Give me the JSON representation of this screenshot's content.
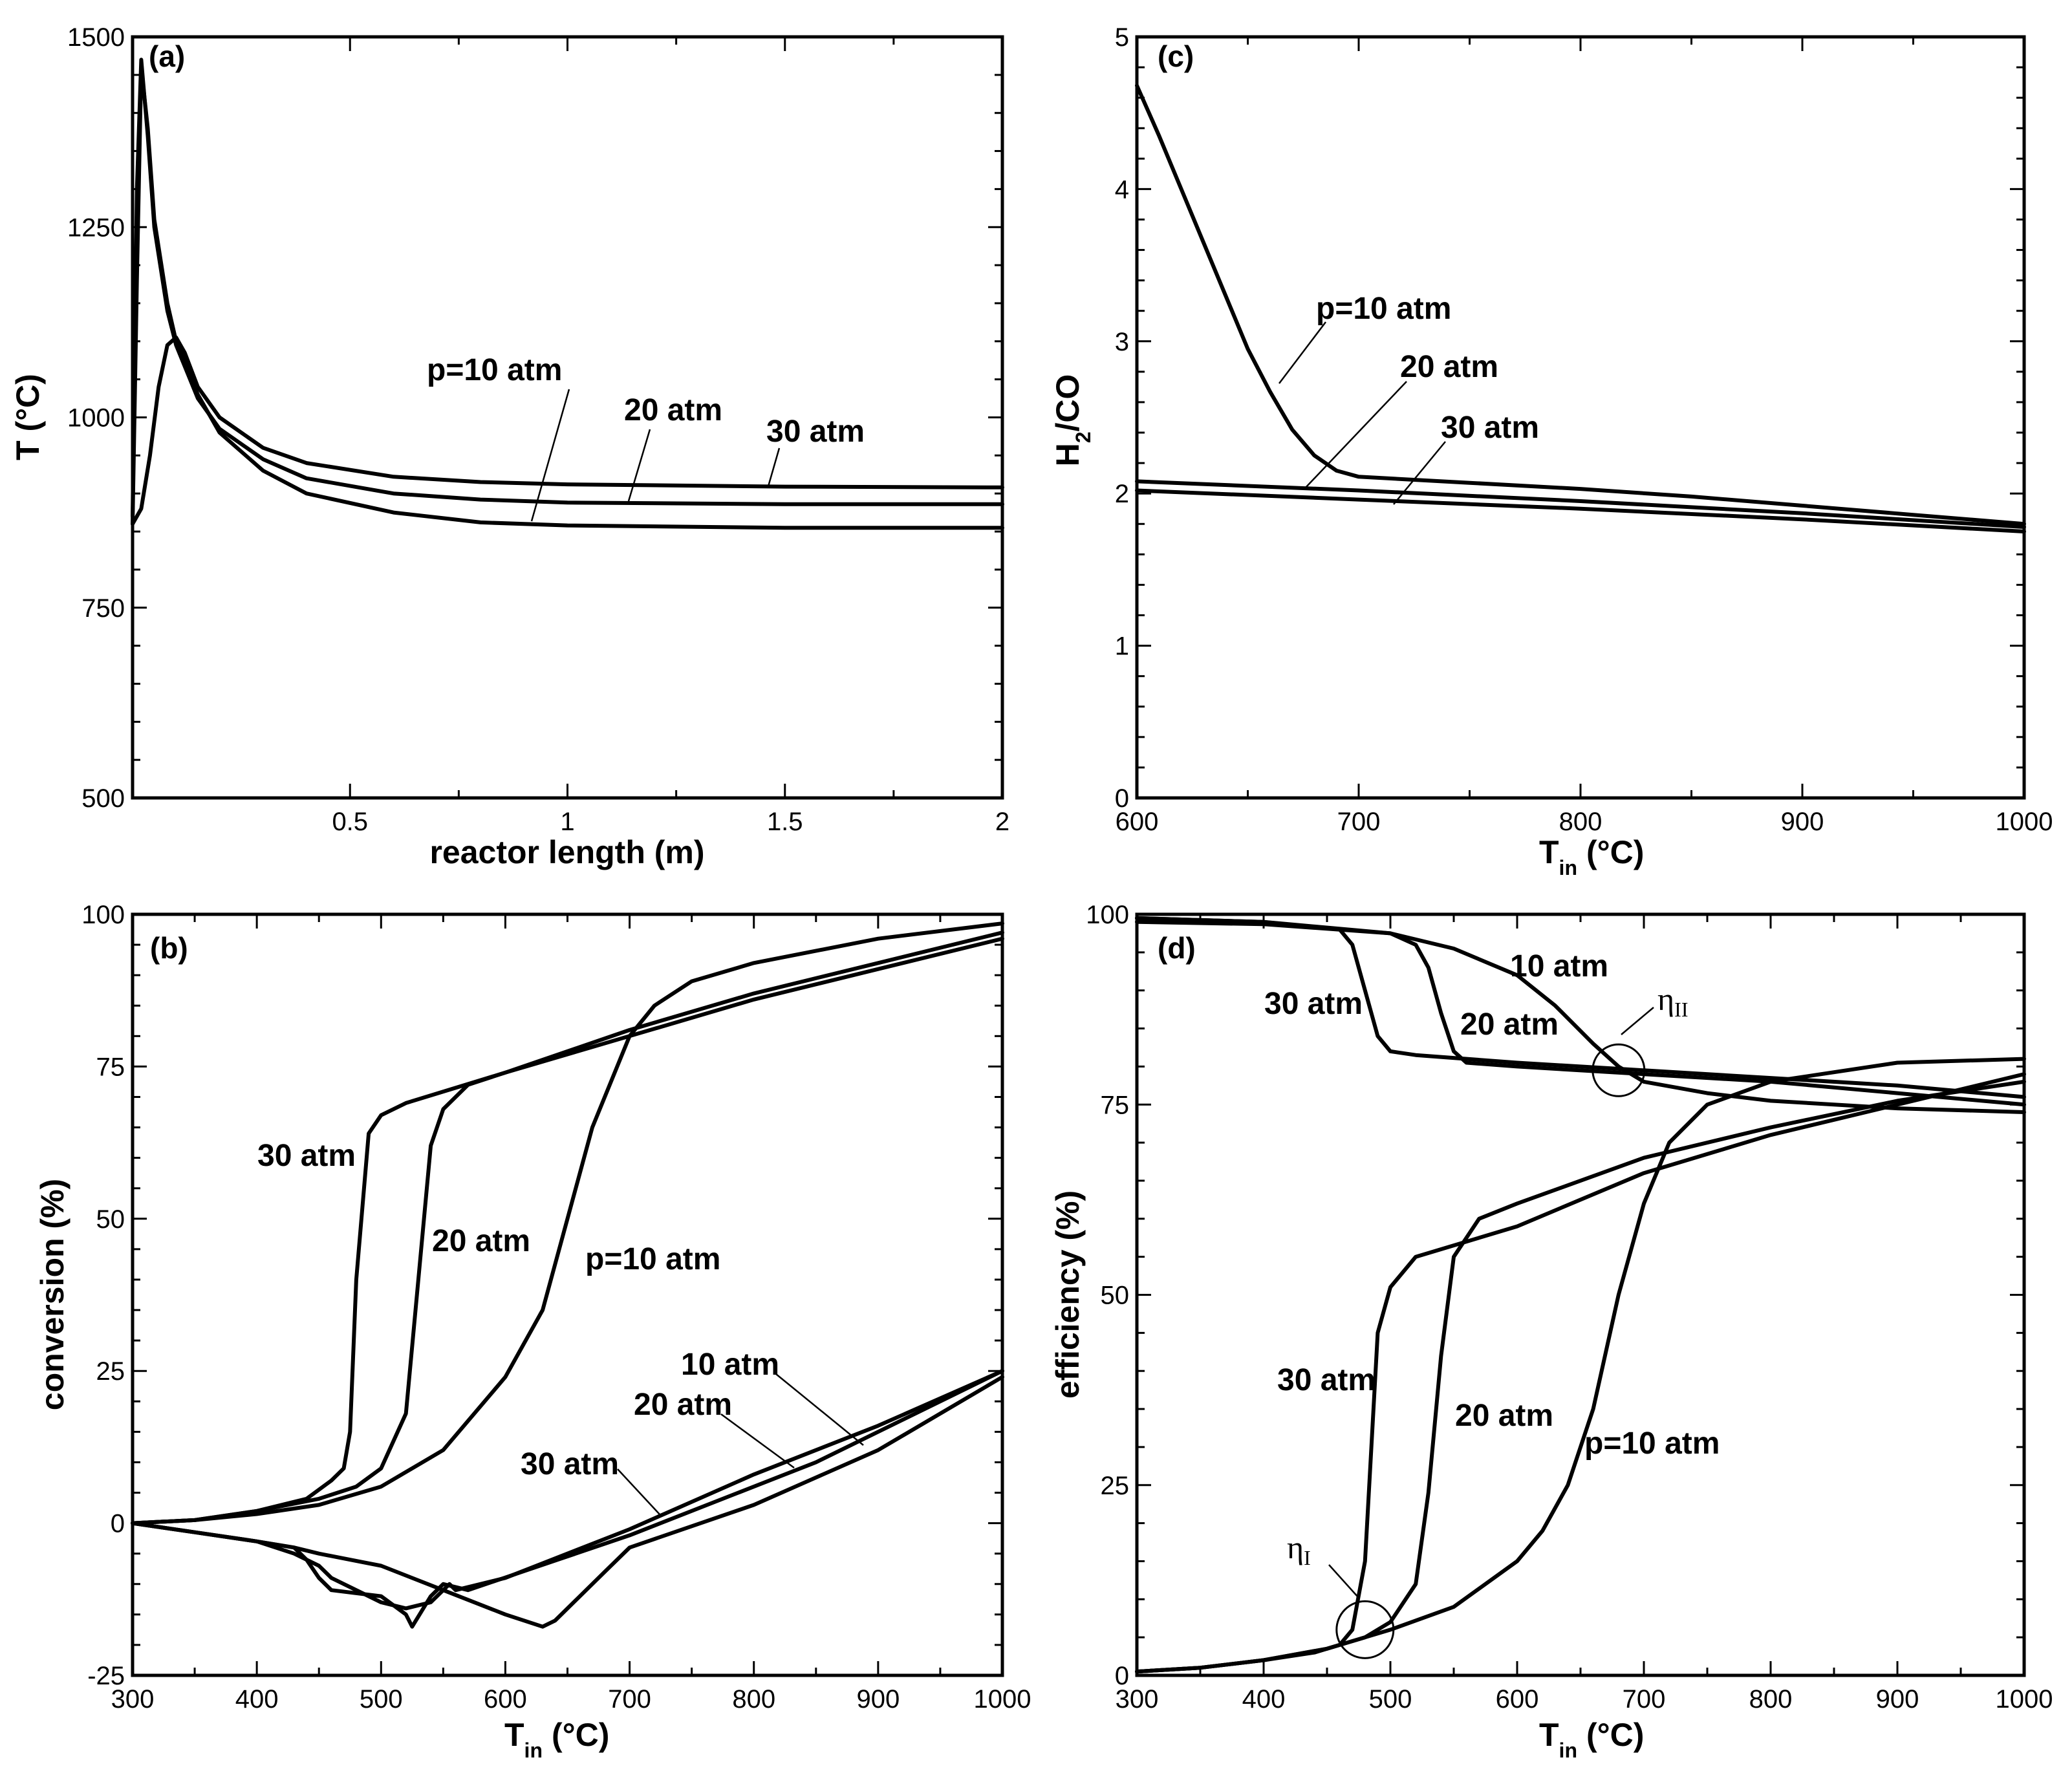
{
  "chart_data": [
    {
      "id": "a",
      "type": "line",
      "panel_label": "(a)",
      "xlabel": "reactor length (m)",
      "ylabel": "T (°C)",
      "xlim": [
        0,
        2
      ],
      "ylim": [
        500,
        1500
      ],
      "xticks": [
        0.5,
        1,
        1.5,
        2
      ],
      "xtick_labels": [
        "0.5",
        "1",
        "1.5",
        "2"
      ],
      "yticks": [
        500,
        750,
        1000,
        1250,
        1500
      ],
      "ytick_labels": [
        "500",
        "750",
        "1000",
        "1250",
        "1500"
      ],
      "series": [
        {
          "name": "p=10 atm",
          "x": [
            0,
            0.01,
            0.02,
            0.035,
            0.05,
            0.08,
            0.1,
            0.15,
            0.2,
            0.3,
            0.4,
            0.6,
            0.8,
            1.0,
            1.5,
            2.0
          ],
          "y": [
            860,
            1180,
            1460,
            1380,
            1260,
            1150,
            1100,
            1030,
            980,
            930,
            900,
            875,
            862,
            858,
            855,
            855
          ]
        },
        {
          "name": "20 atm",
          "x": [
            0,
            0.01,
            0.02,
            0.035,
            0.05,
            0.08,
            0.1,
            0.15,
            0.2,
            0.3,
            0.4,
            0.6,
            0.8,
            1.0,
            1.5,
            2.0
          ],
          "y": [
            870,
            1300,
            1470,
            1370,
            1250,
            1140,
            1095,
            1025,
            985,
            945,
            920,
            900,
            892,
            888,
            886,
            886
          ]
        },
        {
          "name": "30 atm",
          "x": [
            0,
            0.02,
            0.04,
            0.06,
            0.08,
            0.1,
            0.12,
            0.15,
            0.2,
            0.3,
            0.4,
            0.6,
            0.8,
            1.0,
            1.5,
            2.0
          ],
          "y": [
            860,
            880,
            950,
            1040,
            1095,
            1105,
            1085,
            1040,
            1000,
            960,
            940,
            922,
            915,
            912,
            909,
            908
          ]
        }
      ],
      "annotations": [
        {
          "text": "p=10 atm",
          "series": "p=10 atm"
        },
        {
          "text": "20 atm",
          "series": "20 atm"
        },
        {
          "text": "30 atm",
          "series": "30 atm"
        }
      ]
    },
    {
      "id": "b",
      "type": "line",
      "panel_label": "(b)",
      "xlabel": "T",
      "xlabel_sub": "in",
      "xlabel_unit": "(°C)",
      "ylabel": "conversion (%)",
      "xlim": [
        300,
        1000
      ],
      "ylim": [
        -25,
        100
      ],
      "xticks": [
        300,
        400,
        500,
        600,
        700,
        800,
        900,
        1000
      ],
      "xtick_labels": [
        "300",
        "400",
        "500",
        "600",
        "700",
        "800",
        "900",
        "1000"
      ],
      "yticks": [
        -25,
        0,
        25,
        50,
        75,
        100
      ],
      "ytick_labels": [
        "-25",
        "0",
        "25",
        "50",
        "75",
        "100"
      ],
      "series": [
        {
          "name": "30 atm upper",
          "x": [
            300,
            350,
            400,
            440,
            460,
            470,
            475,
            480,
            490,
            500,
            520,
            600,
            700,
            800,
            900,
            1000
          ],
          "y": [
            0,
            0.5,
            2,
            4,
            7,
            9,
            15,
            40,
            64,
            67,
            69,
            74,
            81,
            87,
            92,
            97
          ]
        },
        {
          "name": "20 atm upper",
          "x": [
            300,
            350,
            400,
            450,
            480,
            500,
            520,
            530,
            540,
            550,
            570,
            600,
            700,
            800,
            900,
            1000
          ],
          "y": [
            0,
            0.5,
            2,
            4,
            6,
            9,
            18,
            40,
            62,
            68,
            72,
            74,
            80,
            86,
            91,
            96
          ]
        },
        {
          "name": "p=10 atm upper",
          "x": [
            300,
            350,
            400,
            450,
            500,
            550,
            600,
            630,
            650,
            670,
            700,
            720,
            750,
            800,
            900,
            1000
          ],
          "y": [
            0,
            0.5,
            1.5,
            3,
            6,
            12,
            24,
            35,
            50,
            65,
            80,
            85,
            89,
            92,
            96,
            98.5
          ]
        },
        {
          "name": "30 atm lower",
          "x": [
            300,
            350,
            400,
            430,
            450,
            460,
            500,
            520,
            540,
            555,
            560,
            600,
            700,
            800,
            900,
            1000
          ],
          "y": [
            0,
            -1.5,
            -3,
            -5,
            -7,
            -9,
            -13,
            -14,
            -13,
            -10,
            -11,
            -9,
            -1,
            8,
            16,
            25
          ]
        },
        {
          "name": "20 atm lower",
          "x": [
            300,
            350,
            400,
            430,
            440,
            450,
            460,
            500,
            520,
            525,
            540,
            550,
            570,
            700,
            850,
            1000
          ],
          "y": [
            0,
            -1.5,
            -3,
            -4,
            -6,
            -9,
            -11,
            -12,
            -15,
            -17,
            -12,
            -10,
            -11,
            -2,
            10,
            25
          ]
        },
        {
          "name": "10 atm lower",
          "x": [
            300,
            350,
            400,
            430,
            450,
            500,
            550,
            600,
            630,
            640,
            660,
            680,
            700,
            800,
            900,
            1000
          ],
          "y": [
            0,
            -1.5,
            -3,
            -4,
            -5,
            -7,
            -11,
            -15,
            -17,
            -16,
            -12,
            -8,
            -4,
            3,
            12,
            24
          ]
        }
      ],
      "annotations": [
        {
          "text": "30 atm",
          "series": "30 atm upper"
        },
        {
          "text": "20 atm",
          "series": "20 atm upper"
        },
        {
          "text": "p=10 atm",
          "series": "p=10 atm upper"
        },
        {
          "text": "10 atm",
          "series": "10 atm lower"
        },
        {
          "text": "20 atm",
          "series": "20 atm lower"
        },
        {
          "text": "30 atm",
          "series": "30 atm lower"
        }
      ]
    },
    {
      "id": "c",
      "type": "line",
      "panel_label": "(c)",
      "xlabel": "T",
      "xlabel_sub": "in",
      "xlabel_unit": "(°C)",
      "ylabel": "H",
      "ylabel_sub": "2",
      "ylabel_rest": "/CO",
      "xlim": [
        600,
        1000
      ],
      "ylim": [
        0,
        5
      ],
      "xticks": [
        600,
        700,
        800,
        900,
        1000
      ],
      "xtick_labels": [
        "600",
        "700",
        "800",
        "900",
        "1000"
      ],
      "yticks": [
        0,
        1,
        2,
        3,
        4,
        5
      ],
      "ytick_labels": [
        "0",
        "1",
        "2",
        "3",
        "4",
        "5"
      ],
      "series": [
        {
          "name": "p=10 atm",
          "x": [
            600,
            610,
            620,
            630,
            640,
            650,
            660,
            670,
            680,
            690,
            700,
            750,
            800,
            850,
            900,
            950,
            1000
          ],
          "y": [
            4.68,
            4.35,
            4.0,
            3.65,
            3.3,
            2.95,
            2.67,
            2.42,
            2.25,
            2.15,
            2.11,
            2.07,
            2.03,
            1.98,
            1.92,
            1.86,
            1.8
          ]
        },
        {
          "name": "20 atm",
          "x": [
            600,
            700,
            800,
            900,
            1000
          ],
          "y": [
            2.08,
            2.02,
            1.95,
            1.87,
            1.78
          ]
        },
        {
          "name": "30 atm",
          "x": [
            600,
            700,
            800,
            900,
            1000
          ],
          "y": [
            2.02,
            1.96,
            1.9,
            1.83,
            1.75
          ]
        }
      ],
      "annotations": [
        {
          "text": "p=10 atm",
          "series": "p=10 atm"
        },
        {
          "text": "20 atm",
          "series": "20 atm"
        },
        {
          "text": "30 atm",
          "series": "30 atm"
        }
      ]
    },
    {
      "id": "d",
      "type": "line",
      "panel_label": "(d)",
      "xlabel": "T",
      "xlabel_sub": "in",
      "xlabel_unit": "(°C)",
      "ylabel": "efficiency (%)",
      "xlim": [
        300,
        1000
      ],
      "ylim": [
        0,
        100
      ],
      "xticks": [
        300,
        400,
        500,
        600,
        700,
        800,
        900,
        1000
      ],
      "xtick_labels": [
        "300",
        "400",
        "500",
        "600",
        "700",
        "800",
        "900",
        "1000"
      ],
      "yticks": [
        0,
        25,
        50,
        75,
        100
      ],
      "ytick_labels": [
        "0",
        "25",
        "50",
        "75",
        "100"
      ],
      "series": [
        {
          "name": "10 atm η_II",
          "x": [
            300,
            400,
            500,
            550,
            600,
            630,
            660,
            680,
            700,
            750,
            800,
            900,
            1000
          ],
          "y": [
            99,
            98.7,
            97.5,
            95.5,
            92,
            88,
            83,
            80,
            78,
            76.5,
            75.5,
            74.5,
            74
          ]
        },
        {
          "name": "20 atm η_II",
          "x": [
            300,
            400,
            500,
            520,
            530,
            540,
            550,
            560,
            600,
            700,
            800,
            900,
            1000
          ],
          "y": [
            99.5,
            99,
            97.5,
            96,
            93,
            87,
            82,
            80.5,
            80,
            79,
            78,
            76.5,
            75
          ]
        },
        {
          "name": "30 atm η_II",
          "x": [
            300,
            400,
            460,
            470,
            480,
            490,
            500,
            520,
            600,
            700,
            800,
            900,
            1000
          ],
          "y": [
            99.5,
            99,
            98,
            96,
            90,
            84,
            82,
            81.5,
            80.5,
            79.5,
            78.5,
            77.5,
            76
          ]
        },
        {
          "name": "30 atm η_I",
          "x": [
            300,
            350,
            400,
            440,
            460,
            470,
            480,
            485,
            490,
            500,
            520,
            600,
            700,
            800,
            900,
            1000
          ],
          "y": [
            0.5,
            1,
            2,
            3,
            4,
            6,
            15,
            30,
            45,
            51,
            55,
            59,
            66,
            71,
            75,
            79
          ]
        },
        {
          "name": "20 atm η_I",
          "x": [
            300,
            350,
            400,
            450,
            480,
            500,
            520,
            530,
            540,
            550,
            570,
            600,
            700,
            800,
            900,
            1000
          ],
          "y": [
            0.5,
            1,
            2,
            3.5,
            5,
            7,
            12,
            24,
            42,
            55,
            60,
            62,
            68,
            72,
            75.5,
            78
          ]
        },
        {
          "name": "p=10 atm η_I",
          "x": [
            300,
            350,
            400,
            450,
            500,
            550,
            600,
            620,
            640,
            660,
            680,
            700,
            720,
            750,
            800,
            900,
            1000
          ],
          "y": [
            0.5,
            1,
            2,
            3.5,
            6,
            9,
            15,
            19,
            25,
            35,
            50,
            62,
            70,
            75,
            78,
            80.5,
            81
          ]
        }
      ],
      "annotations": [
        {
          "text": "10 atm",
          "series": "10 atm η_II"
        },
        {
          "text": "20 atm",
          "series": "20 atm η_II"
        },
        {
          "text": "30 atm",
          "series": "30 atm η_II"
        },
        {
          "text": "30 atm",
          "series": "30 atm η_I"
        },
        {
          "text": "20 atm",
          "series": "20 atm η_I"
        },
        {
          "text": "p=10 atm",
          "series": "p=10 atm η_I"
        },
        {
          "text": "η",
          "sub": "II",
          "marker_at": [
            680,
            79.5
          ]
        },
        {
          "text": "η",
          "sub": "I",
          "marker_at": [
            480,
            6
          ]
        }
      ]
    }
  ]
}
